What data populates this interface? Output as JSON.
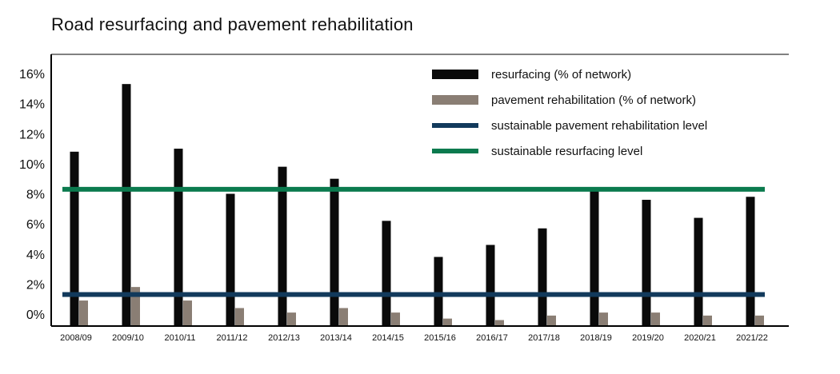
{
  "chart_data": {
    "type": "bar",
    "title": "Road resurfacing and pavement rehabilitation",
    "categories": [
      "2008/09",
      "2009/10",
      "2010/11",
      "2011/12",
      "2012/13",
      "2013/14",
      "2014/15",
      "2015/16",
      "2016/17",
      "2017/18",
      "2018/19",
      "2019/20",
      "2020/21",
      "2021/22"
    ],
    "series": [
      {
        "name": "resurfacing (% of network)",
        "color": "#0a0a0a",
        "values": [
          10.8,
          15.3,
          11.0,
          8.0,
          9.8,
          9.0,
          6.2,
          3.8,
          4.6,
          5.7,
          8.2,
          7.6,
          6.4,
          7.8
        ]
      },
      {
        "name": "pavement rehabilitation (% of network)",
        "color": "#8a7e74",
        "values": [
          0.9,
          1.8,
          0.9,
          0.4,
          0.1,
          0.4,
          0.1,
          -0.3,
          -0.4,
          -0.1,
          0.1,
          0.1,
          -0.1,
          -0.1
        ]
      }
    ],
    "reference_lines": [
      {
        "name": "sustainable pavement rehabilitation level",
        "value": 1.3,
        "color": "#123a5c"
      },
      {
        "name": "sustainable resurfacing level",
        "value": 8.3,
        "color": "#0b7a4e"
      }
    ],
    "yticks": [
      "0%",
      "2%",
      "4%",
      "6%",
      "8%",
      "10%",
      "12%",
      "14%",
      "16%"
    ],
    "ytick_values": [
      0,
      2,
      4,
      6,
      8,
      10,
      12,
      14,
      16
    ],
    "ylim": [
      -0.8,
      17.2
    ],
    "legend_position": "top-right",
    "grid": false
  }
}
